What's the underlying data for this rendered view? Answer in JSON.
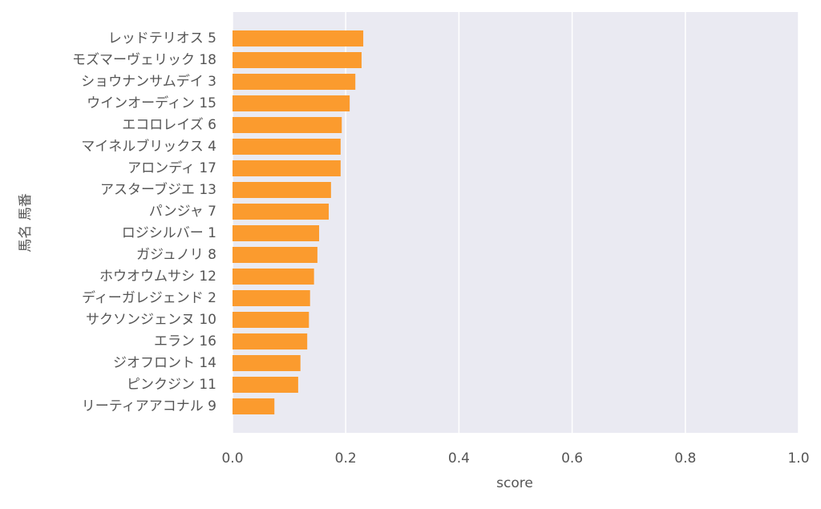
{
  "chart_data": {
    "type": "barh",
    "xlabel": "score",
    "ylabel": "馬名 馬番",
    "categories": [
      "レッドテリオス 5",
      "モズマーヴェリック 18",
      "ショウナンサムデイ 3",
      "ウインオーディン 15",
      "エコロレイズ 6",
      "マイネルブリックス 4",
      "アロンディ 17",
      "アスターブジエ 13",
      "パンジャ 7",
      "ロジシルバー 1",
      "ガジュノリ 8",
      "ホウオウムサシ 12",
      "ディーガレジェンド 2",
      "サクソンジェンヌ 10",
      "エラン 16",
      "ジオフロント 14",
      "ピンクジン 11",
      "リーティアアコナル 9"
    ],
    "values": [
      0.231,
      0.228,
      0.217,
      0.207,
      0.193,
      0.191,
      0.191,
      0.174,
      0.17,
      0.153,
      0.15,
      0.144,
      0.137,
      0.135,
      0.132,
      0.12,
      0.116,
      0.074
    ],
    "color": "#fb9b2e",
    "xlim": [
      0,
      1
    ],
    "xticks": [
      {
        "value": 0,
        "label": "0.0"
      },
      {
        "value": 0.2,
        "label": "0.2"
      },
      {
        "value": 0.4,
        "label": "0.4"
      },
      {
        "value": 0.6,
        "label": "0.6"
      },
      {
        "value": 0.8,
        "label": "0.8"
      },
      {
        "value": 1,
        "label": "1.0"
      }
    ],
    "grid": true
  }
}
